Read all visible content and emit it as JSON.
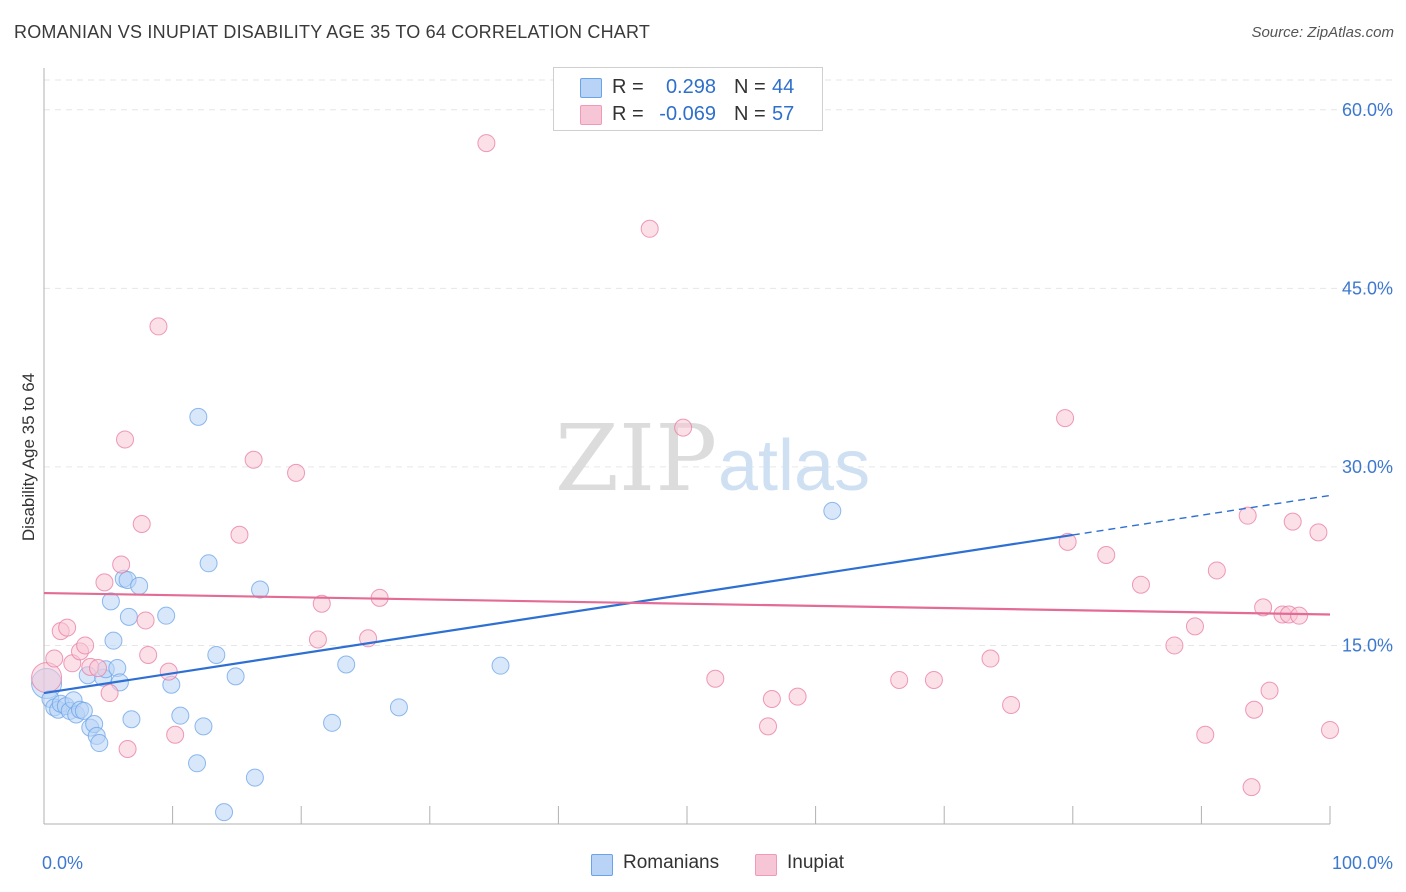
{
  "title": "ROMANIAN VS INUPIAT DISABILITY AGE 35 TO 64 CORRELATION CHART",
  "source": "Source: ZipAtlas.com",
  "watermark": {
    "part1": "ZIP",
    "part2": "atlas"
  },
  "legend": {
    "rows": [
      {
        "r_label": "R =",
        "r_value": "0.298",
        "n_label": "N =",
        "n_value": "44",
        "color": "#6aa3e8"
      },
      {
        "r_label": "R =",
        "r_value": "-0.069",
        "n_label": "N =",
        "n_value": "57",
        "color": "#f09ab6"
      }
    ]
  },
  "bottom_legend": {
    "series1": "Romanians",
    "series2": "Inupiat"
  },
  "chart_data": {
    "type": "scatter",
    "title": "ROMANIAN VS INUPIAT DISABILITY AGE 35 TO 64 CORRELATION CHART",
    "xlabel": "",
    "ylabel": "Disability Age 35 to 64",
    "xlim": [
      0,
      100
    ],
    "ylim": [
      0,
      62.5
    ],
    "x_tick_labels": [
      "0.0%",
      "100.0%"
    ],
    "y_ticks": [
      15,
      30,
      45,
      60
    ],
    "y_tick_labels": [
      "15.0%",
      "30.0%",
      "45.0%",
      "60.0%"
    ],
    "grid": true,
    "series": [
      {
        "name": "Romanians",
        "color": "#6aa3e8",
        "fill": "#b8d3f5",
        "trend": {
          "x0": 0,
          "y0": 11.0,
          "x1": 100,
          "y1": 27.6,
          "solid_until": 80
        },
        "points": [
          [
            0.2,
            11.8
          ],
          [
            0.5,
            10.5
          ],
          [
            0.8,
            9.8
          ],
          [
            1.1,
            9.6
          ],
          [
            1.3,
            10.1
          ],
          [
            1.7,
            9.9
          ],
          [
            2.0,
            9.5
          ],
          [
            2.3,
            10.4
          ],
          [
            2.5,
            9.2
          ],
          [
            2.8,
            9.6
          ],
          [
            3.1,
            9.5
          ],
          [
            3.4,
            12.5
          ],
          [
            3.6,
            8.1
          ],
          [
            3.9,
            8.4
          ],
          [
            4.1,
            7.4
          ],
          [
            4.3,
            6.8
          ],
          [
            4.6,
            12.3
          ],
          [
            4.8,
            13.0
          ],
          [
            5.2,
            18.7
          ],
          [
            5.4,
            15.4
          ],
          [
            5.7,
            13.1
          ],
          [
            5.9,
            11.9
          ],
          [
            6.2,
            20.6
          ],
          [
            6.5,
            20.5
          ],
          [
            6.6,
            17.4
          ],
          [
            6.8,
            8.8
          ],
          [
            7.4,
            20.0
          ],
          [
            9.5,
            17.5
          ],
          [
            9.9,
            11.7
          ],
          [
            10.6,
            9.1
          ],
          [
            11.9,
            5.1
          ],
          [
            12.0,
            34.2
          ],
          [
            12.4,
            8.2
          ],
          [
            12.8,
            21.9
          ],
          [
            13.4,
            14.2
          ],
          [
            14.0,
            1.0
          ],
          [
            14.9,
            12.4
          ],
          [
            16.4,
            3.9
          ],
          [
            16.8,
            19.7
          ],
          [
            22.4,
            8.5
          ],
          [
            23.5,
            13.4
          ],
          [
            27.6,
            9.8
          ],
          [
            35.5,
            13.3
          ],
          [
            61.3,
            26.3
          ]
        ]
      },
      {
        "name": "Inupiat",
        "color": "#e97aa0",
        "fill": "#f7c6d6",
        "trend": {
          "x0": 0,
          "y0": 19.4,
          "x1": 100,
          "y1": 17.6
        },
        "points": [
          [
            0.2,
            12.3
          ],
          [
            0.8,
            13.9
          ],
          [
            1.3,
            16.2
          ],
          [
            1.8,
            16.5
          ],
          [
            2.2,
            13.5
          ],
          [
            2.8,
            14.5
          ],
          [
            3.2,
            15.0
          ],
          [
            3.6,
            13.2
          ],
          [
            4.2,
            13.1
          ],
          [
            4.7,
            20.3
          ],
          [
            5.1,
            11.0
          ],
          [
            6.0,
            21.8
          ],
          [
            6.3,
            32.3
          ],
          [
            6.5,
            6.3
          ],
          [
            7.6,
            25.2
          ],
          [
            7.9,
            17.1
          ],
          [
            8.1,
            14.2
          ],
          [
            8.9,
            41.8
          ],
          [
            9.7,
            12.8
          ],
          [
            10.2,
            7.5
          ],
          [
            15.2,
            24.3
          ],
          [
            16.3,
            30.6
          ],
          [
            19.6,
            29.5
          ],
          [
            21.3,
            15.5
          ],
          [
            21.6,
            18.5
          ],
          [
            25.2,
            15.6
          ],
          [
            26.1,
            19.0
          ],
          [
            34.4,
            57.2
          ],
          [
            47.1,
            50.0
          ],
          [
            49.7,
            33.3
          ],
          [
            52.2,
            12.2
          ],
          [
            56.3,
            8.2
          ],
          [
            56.6,
            10.5
          ],
          [
            58.6,
            10.7
          ],
          [
            66.5,
            12.1
          ],
          [
            69.2,
            12.1
          ],
          [
            73.6,
            13.9
          ],
          [
            75.2,
            10.0
          ],
          [
            79.4,
            34.1
          ],
          [
            79.6,
            23.7
          ],
          [
            82.6,
            22.6
          ],
          [
            85.3,
            20.1
          ],
          [
            87.9,
            15.0
          ],
          [
            89.5,
            16.6
          ],
          [
            90.3,
            7.5
          ],
          [
            91.2,
            21.3
          ],
          [
            93.6,
            25.9
          ],
          [
            93.9,
            3.1
          ],
          [
            94.1,
            9.6
          ],
          [
            94.8,
            18.2
          ],
          [
            95.3,
            11.2
          ],
          [
            96.3,
            17.6
          ],
          [
            96.8,
            17.6
          ],
          [
            97.1,
            25.4
          ],
          [
            97.6,
            17.5
          ],
          [
            99.1,
            24.5
          ],
          [
            100.0,
            7.9
          ]
        ]
      }
    ]
  }
}
